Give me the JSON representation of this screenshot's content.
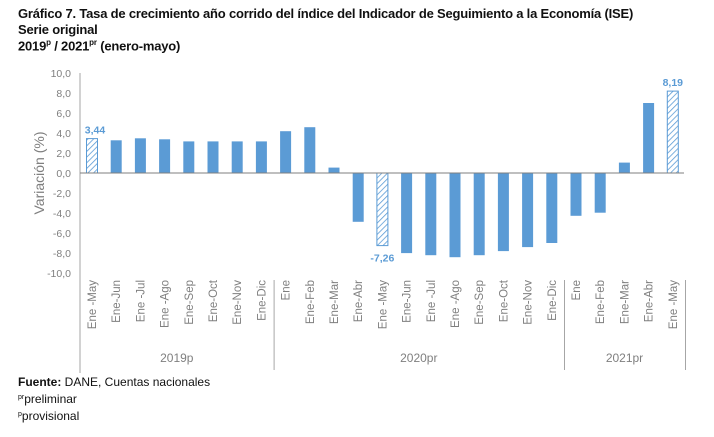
{
  "title": {
    "line1": "Gráfico 7. Tasa de crecimiento año corrido del índice del Indicador de Seguimiento a la Economía (ISE)",
    "line2": "Serie original",
    "line3_a": "2019",
    "line3_a_sup": "p",
    "line3_b": " / 2021",
    "line3_b_sup": "pr",
    "line3_c": " (enero-mayo)"
  },
  "chart_data": {
    "type": "bar",
    "ylabel": "Variación (%)",
    "ylim": [
      -10,
      10
    ],
    "yticks": [
      "10,0",
      "8,0",
      "6,0",
      "4,0",
      "2,0",
      "0,0",
      "-2,0",
      "-4,0",
      "-6,0",
      "-8,0",
      "-10,0"
    ],
    "grid": false,
    "bar_color": "#5b9bd5",
    "categories": [
      "Ene -May",
      "Ene-Jun",
      "Ene -Jul",
      "Ene -Ago",
      "Ene-Sep",
      "Ene-Oct",
      "Ene-Nov",
      "Ene-Dic",
      "Ene",
      "Ene-Feb",
      "Ene-Mar",
      "Ene-Abr",
      "Ene -May",
      "Ene-Jun",
      "Ene -Jul",
      "Ene -Ago",
      "Ene-Sep",
      "Ene-Oct",
      "Ene-Nov",
      "Ene-Dic",
      "Ene",
      "Ene-Feb",
      "Ene-Mar",
      "Ene-Abr",
      "Ene -May"
    ],
    "values": [
      3.44,
      3.27,
      3.47,
      3.37,
      3.16,
      3.16,
      3.16,
      3.16,
      4.18,
      4.58,
      0.54,
      -4.88,
      -7.26,
      -8.01,
      -8.22,
      -8.42,
      -8.22,
      -7.81,
      -7.41,
      -7.0,
      -4.28,
      -3.97,
      1.04,
      7.0,
      8.19
    ],
    "hatched": [
      0,
      12,
      24
    ],
    "data_labels": [
      {
        "index": 0,
        "text": "3,44"
      },
      {
        "index": 12,
        "text": "-7,26"
      },
      {
        "index": 24,
        "text": "8,19"
      }
    ],
    "groups": [
      {
        "label": "2019p",
        "start": 0,
        "end": 7
      },
      {
        "label": "2020pr",
        "start": 8,
        "end": 19
      },
      {
        "label": "2021pr",
        "start": 20,
        "end": 24
      }
    ]
  },
  "footer": {
    "source_label": "Fuente:",
    "source_text": " DANE, Cuentas nacionales",
    "note1_sup": "pr",
    "note1": "preliminar",
    "note2_sup": "p",
    "note2": "provisional"
  }
}
